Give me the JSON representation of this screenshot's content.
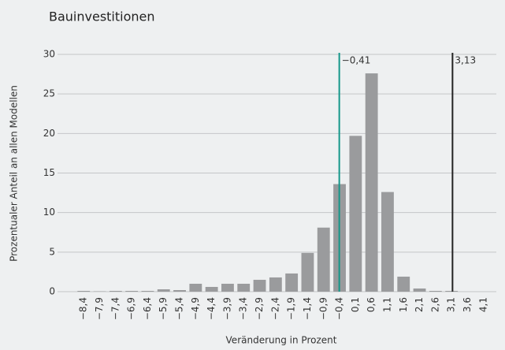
{
  "chart_data": {
    "type": "bar",
    "title": "Bauinvestitionen",
    "xlabel": "Veränderung in Prozent",
    "ylabel": "Prozentualer Anteil an allen Modellen",
    "x": [
      -8.4,
      -7.9,
      -7.4,
      -6.9,
      -6.4,
      -5.9,
      -5.4,
      -4.9,
      -4.4,
      -3.9,
      -3.4,
      -2.9,
      -2.4,
      -1.9,
      -1.4,
      -0.9,
      -0.4,
      0.1,
      0.6,
      1.1,
      1.6,
      2.1,
      2.6,
      3.1,
      3.6,
      4.1
    ],
    "values": [
      0.1,
      0.05,
      0.1,
      0.1,
      0.1,
      0.3,
      0.2,
      1.0,
      0.6,
      1.0,
      1.0,
      1.5,
      1.8,
      2.3,
      4.9,
      8.1,
      13.6,
      19.7,
      27.6,
      12.6,
      1.9,
      0.4,
      0.1,
      0.1,
      0,
      0
    ],
    "color": "#9a9b9d",
    "xlim": [
      -8.8,
      4.5
    ],
    "xticks": [
      {
        "value": -8.4,
        "label": "−8,4"
      },
      {
        "value": -7.9,
        "label": "−7,9"
      },
      {
        "value": -7.4,
        "label": "−7,4"
      },
      {
        "value": -6.9,
        "label": "−6,9"
      },
      {
        "value": -6.4,
        "label": "−6,4"
      },
      {
        "value": -5.9,
        "label": "−5,9"
      },
      {
        "value": -5.4,
        "label": "−5,4"
      },
      {
        "value": -4.9,
        "label": "−4,9"
      },
      {
        "value": -4.4,
        "label": "−4,4"
      },
      {
        "value": -3.9,
        "label": "−3,9"
      },
      {
        "value": -3.4,
        "label": "−3,4"
      },
      {
        "value": -2.9,
        "label": "−2,9"
      },
      {
        "value": -2.4,
        "label": "−2,4"
      },
      {
        "value": -1.9,
        "label": "−1,9"
      },
      {
        "value": -1.4,
        "label": "−1,4"
      },
      {
        "value": -0.9,
        "label": "−0,9"
      },
      {
        "value": -0.4,
        "label": "−0,4"
      },
      {
        "value": 0.1,
        "label": "0,1"
      },
      {
        "value": 0.6,
        "label": "0,6"
      },
      {
        "value": 1.1,
        "label": "1,1"
      },
      {
        "value": 1.6,
        "label": "1,6"
      },
      {
        "value": 2.1,
        "label": "2,1"
      },
      {
        "value": 2.6,
        "label": "2,6"
      },
      {
        "value": 3.1,
        "label": "3,1"
      },
      {
        "value": 3.6,
        "label": "3,6"
      },
      {
        "value": 4.1,
        "label": "4,1"
      }
    ],
    "ylim": [
      0,
      30
    ],
    "yticks": [
      0,
      5,
      10,
      15,
      20,
      25,
      30
    ],
    "grid": true,
    "annotations": [
      {
        "value": -0.41,
        "label": "−0,41",
        "color": "#14978a"
      },
      {
        "value": 3.13,
        "label": "3,13",
        "color": "#222222"
      }
    ]
  }
}
